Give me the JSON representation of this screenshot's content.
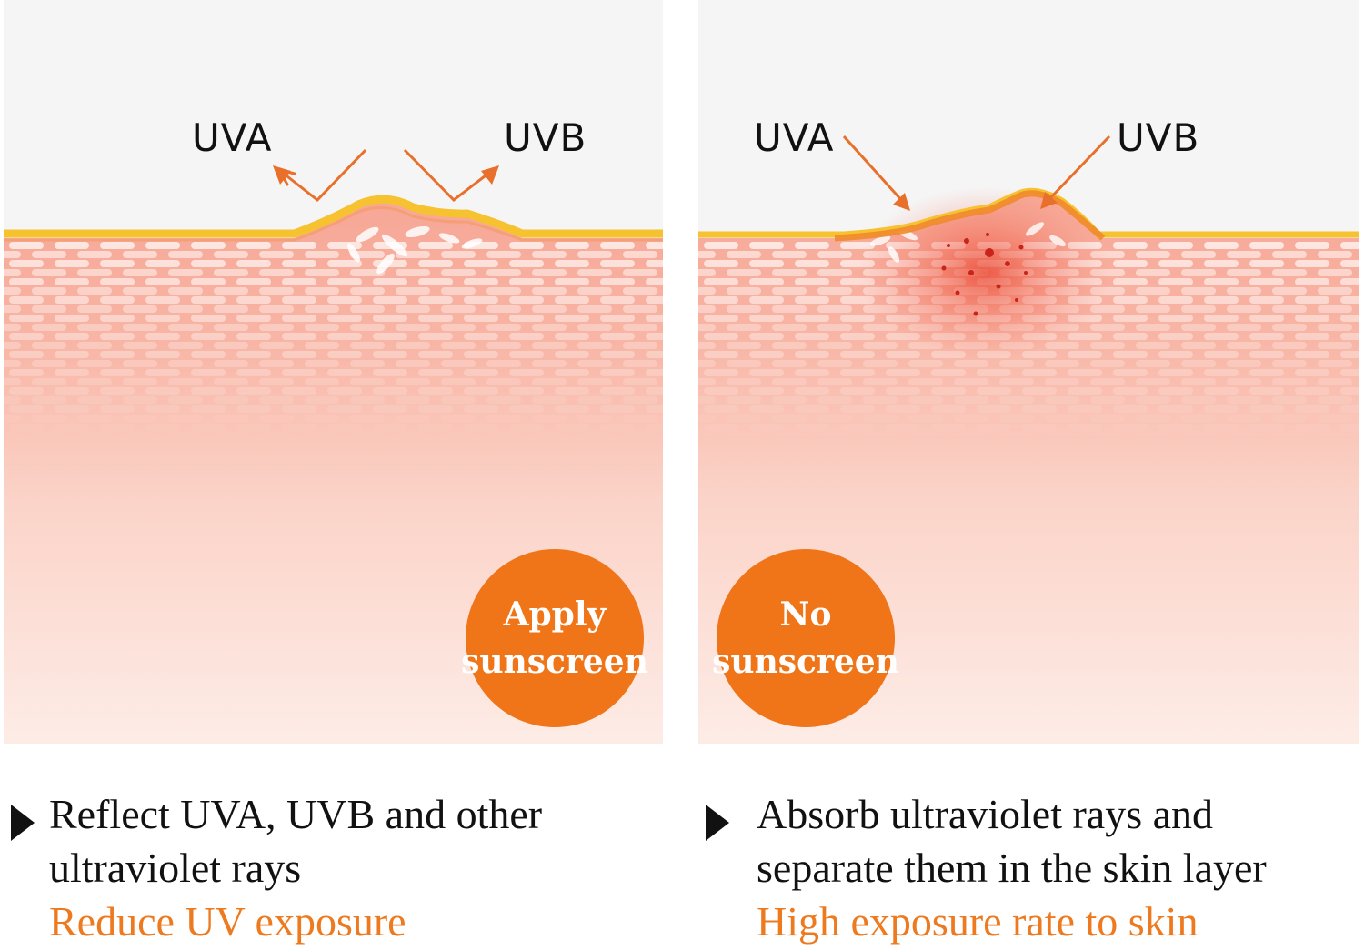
{
  "left": {
    "uva_label": "UVA",
    "uvb_label": "UVB",
    "badge_line1": "Apply",
    "badge_line2": "sunscreen",
    "caption_line1": "Reflect UVA, UVB and other",
    "caption_line2": "ultraviolet rays",
    "caption_highlight": "Reduce UV exposure"
  },
  "right": {
    "uva_label": "UVA",
    "uvb_label": "UVB",
    "badge_line1": "No",
    "badge_line2": "sunscreen",
    "caption_line1": "Absorb ultraviolet rays and",
    "caption_line2": "separate them in the skin layer",
    "caption_highlight": "High exposure rate to skin"
  },
  "colors": {
    "accent": "#f07418",
    "highlight_text": "#ee7a20",
    "arrow": "#e8702a",
    "sunscreen_layer": "#f6c230",
    "skin": "#f8b8a8"
  }
}
